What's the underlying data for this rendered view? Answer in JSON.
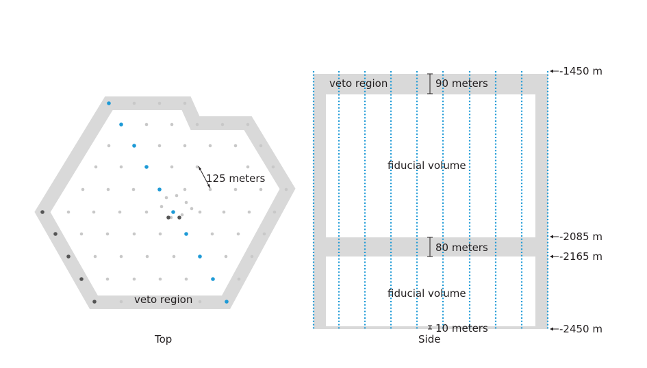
{
  "top_view": {
    "caption": "Top",
    "veto_label": "veto region",
    "spacing_label": "125 meters",
    "colors": {
      "veto": "#d9d9d9",
      "string": "#c8c8c8",
      "highlight": "#1e9ad6",
      "dark": "#555555"
    }
  },
  "side_view": {
    "caption": "Side",
    "veto_label": "veto region",
    "fiducial_upper_label": "fiducial volume",
    "fiducial_lower_label": "fiducial volume",
    "top_veto_thickness": "90 meters",
    "middle_veto_thickness": "80 meters",
    "bottom_veto_thickness": "10 meters",
    "depths": [
      {
        "label": "-1450 m"
      },
      {
        "label": "-2085 m"
      },
      {
        "label": "-2165 m"
      },
      {
        "label": "-2450 m"
      }
    ],
    "colors": {
      "veto": "#d9d9d9",
      "string": "#1e9ad6"
    }
  }
}
